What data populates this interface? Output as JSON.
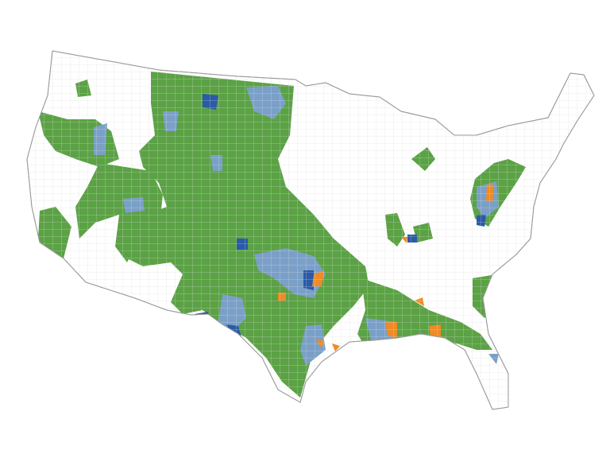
{
  "map": {
    "background": "#ffffff",
    "land_fill": "#ffffff",
    "border_color": "#c8c8c8",
    "category_colors": {
      "green": "#5ba245",
      "light_blue": "#7aa0c8",
      "dark_blue": "#2a5aa8",
      "orange": "#f08a24"
    }
  }
}
